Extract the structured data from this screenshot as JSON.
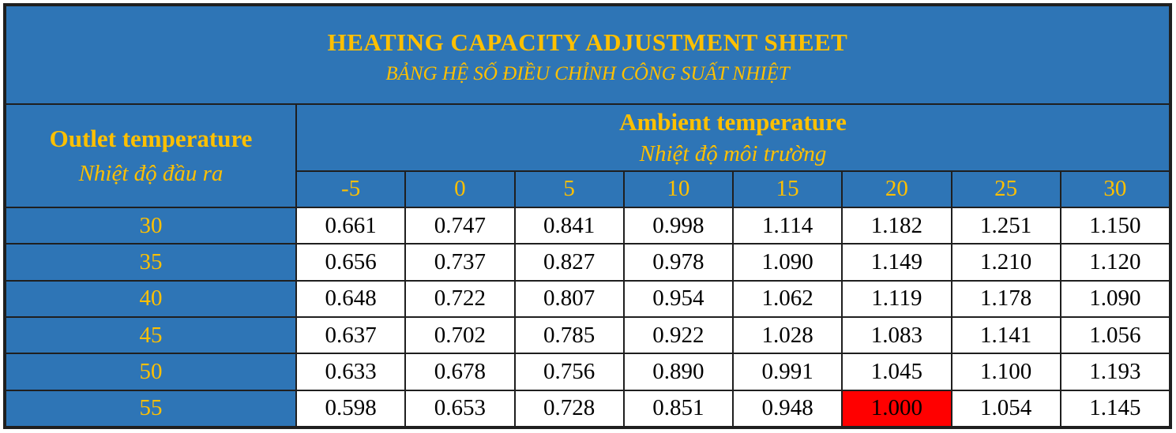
{
  "title": {
    "en": "HEATING CAPACITY ADJUSTMENT SHEET",
    "vi": "BẢNG HỆ SỐ ĐIỀU CHỈNH CÔNG SUẤT NHIỆT"
  },
  "outlet_header": {
    "en": "Outlet temperature",
    "vi": "Nhiệt độ đầu ra"
  },
  "ambient_header": {
    "en": "Ambient temperature",
    "vi": "Nhiệt độ môi trường"
  },
  "columns": [
    "-5",
    "0",
    "5",
    "10",
    "15",
    "20",
    "25",
    "30"
  ],
  "rows": [
    {
      "outlet": "30",
      "values": [
        "0.661",
        "0.747",
        "0.841",
        "0.998",
        "1.114",
        "1.182",
        "1.251",
        "1.150"
      ]
    },
    {
      "outlet": "35",
      "values": [
        "0.656",
        "0.737",
        "0.827",
        "0.978",
        "1.090",
        "1.149",
        "1.210",
        "1.120"
      ]
    },
    {
      "outlet": "40",
      "values": [
        "0.648",
        "0.722",
        "0.807",
        "0.954",
        "1.062",
        "1.119",
        "1.178",
        "1.090"
      ]
    },
    {
      "outlet": "45",
      "values": [
        "0.637",
        "0.702",
        "0.785",
        "0.922",
        "1.028",
        "1.083",
        "1.141",
        "1.056"
      ]
    },
    {
      "outlet": "50",
      "values": [
        "0.633",
        "0.678",
        "0.756",
        "0.890",
        "0.991",
        "1.045",
        "1.100",
        "1.193"
      ]
    },
    {
      "outlet": "55",
      "values": [
        "0.598",
        "0.653",
        "0.728",
        "0.851",
        "0.948",
        "1.000",
        "1.054",
        "1.145"
      ]
    }
  ],
  "highlight": {
    "row": 5,
    "col": 5,
    "color": "#ff0000"
  },
  "colors": {
    "header_bg": "#2e75b6",
    "header_text": "#ffc000",
    "cell_bg": "#ffffff",
    "border": "#1f1f1f"
  }
}
